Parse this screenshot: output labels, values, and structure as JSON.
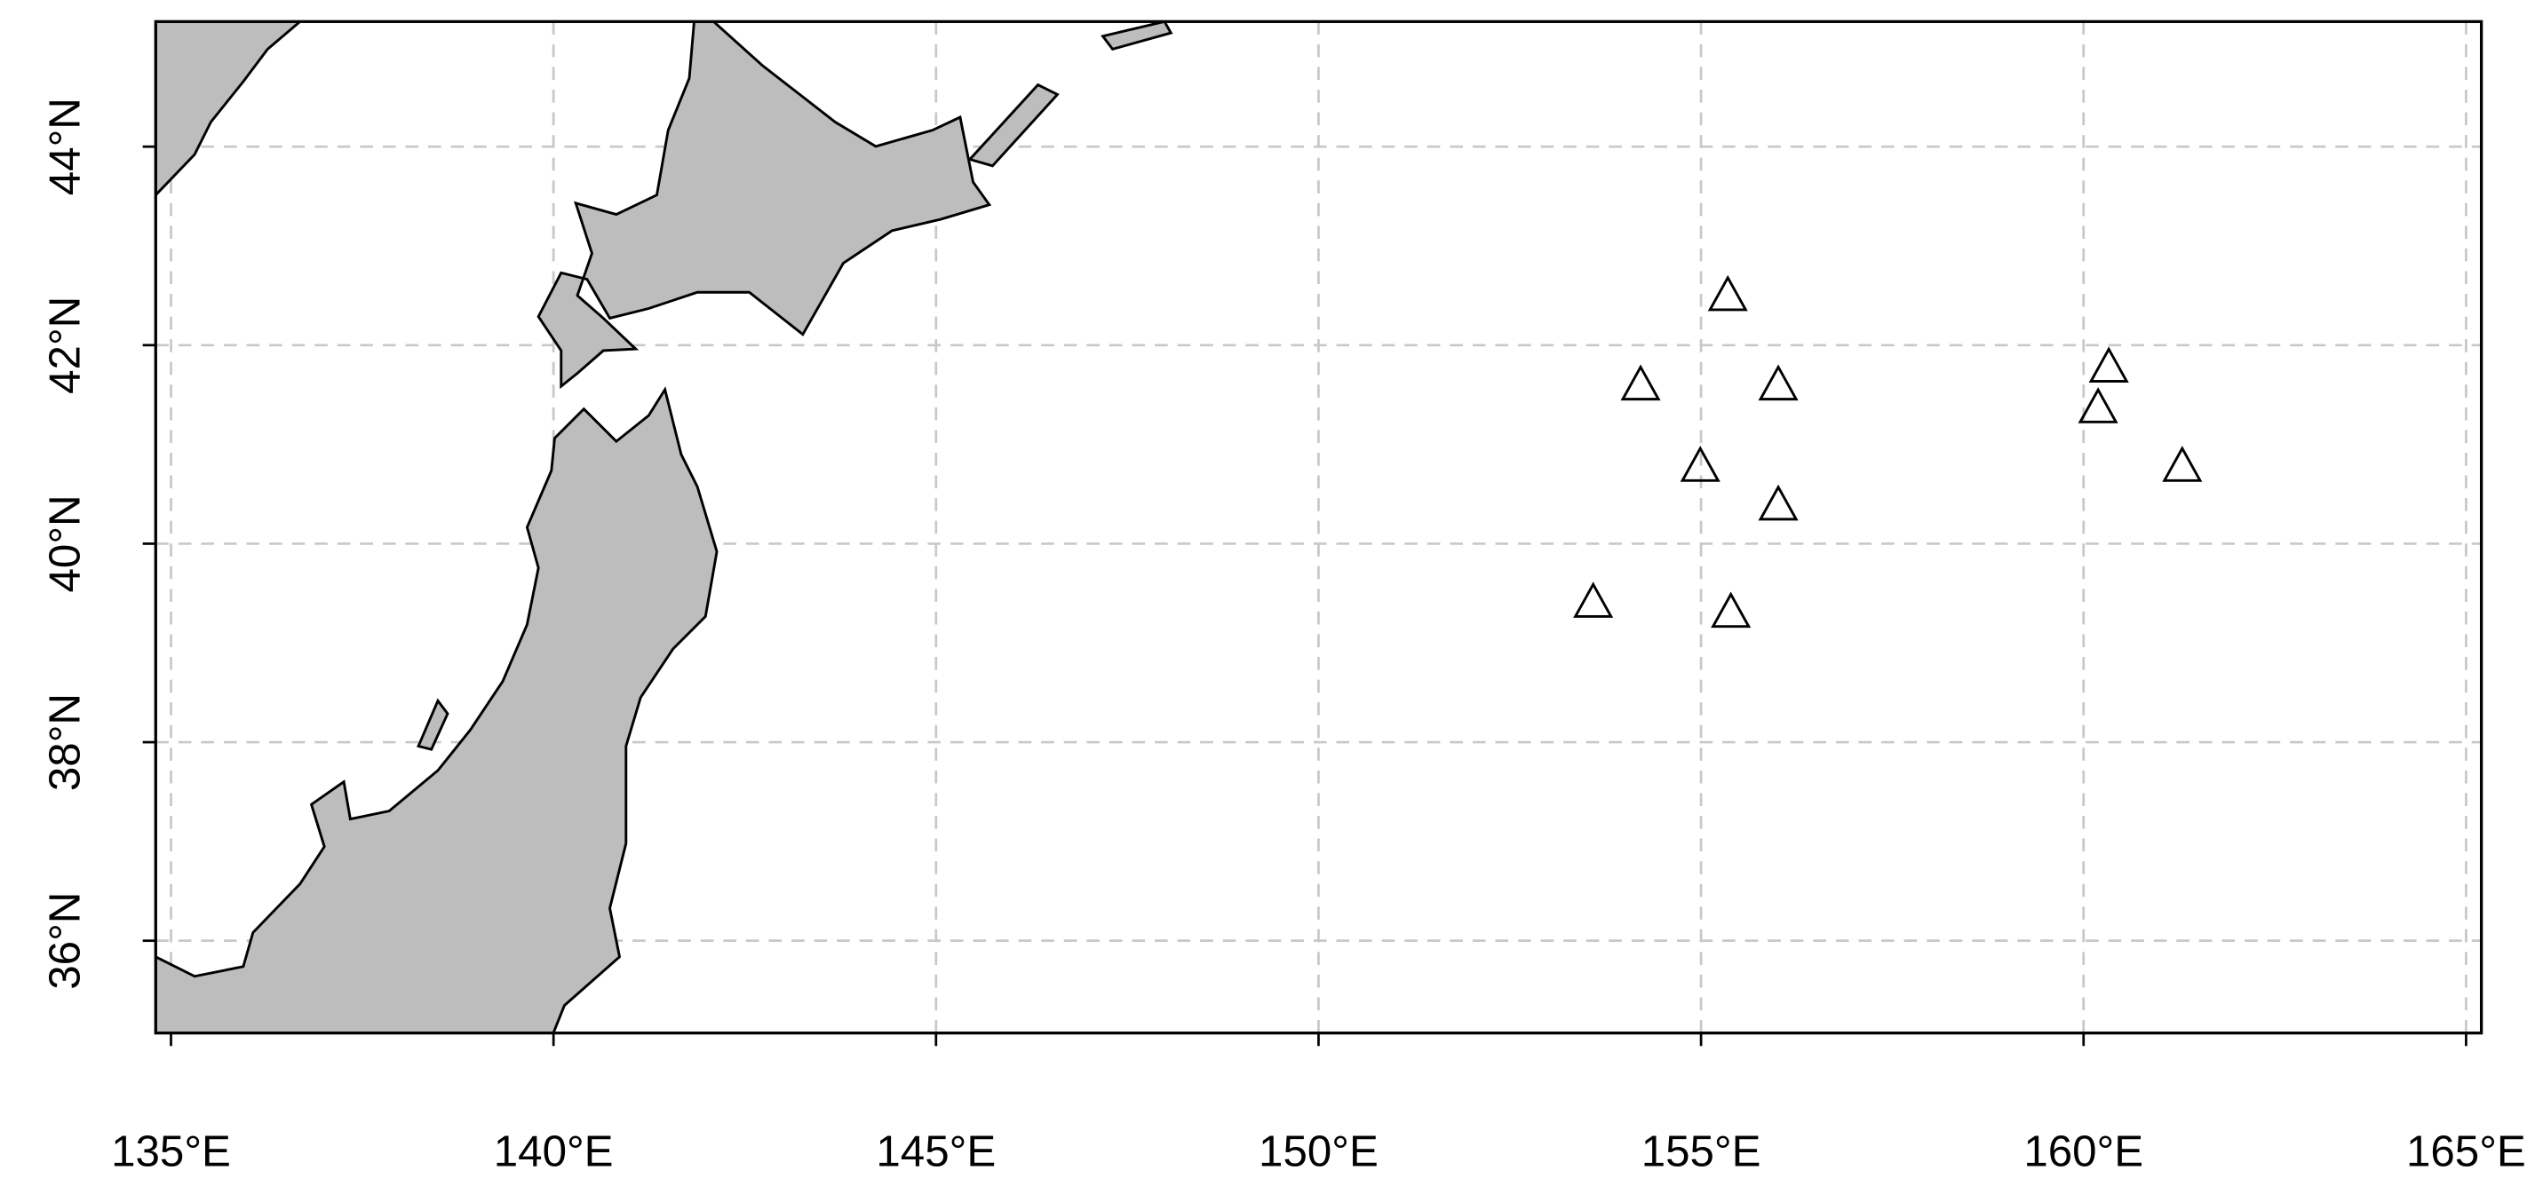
{
  "chart_data": {
    "type": "scatter",
    "x": [
      155.35,
      154.21,
      156.01,
      154.99,
      156.01,
      153.59,
      155.39,
      160.33,
      160.19,
      161.29
    ],
    "y": [
      42.5,
      41.6,
      41.6,
      40.78,
      40.39,
      39.41,
      39.31,
      41.78,
      41.37,
      40.78
    ],
    "marker": "triangle",
    "color": "#000000",
    "xlim": [
      134.8,
      165.2
    ],
    "ylim": [
      35.07,
      45.26
    ],
    "xticks": [
      {
        "value": 135,
        "label": "135°E"
      },
      {
        "value": 140,
        "label": "140°E"
      },
      {
        "value": 145,
        "label": "145°E"
      },
      {
        "value": 150,
        "label": "150°E"
      },
      {
        "value": 155,
        "label": "155°E"
      },
      {
        "value": 160,
        "label": "160°E"
      },
      {
        "value": 165,
        "label": "165°E"
      }
    ],
    "yticks": [
      {
        "value": 36,
        "label": "36°N"
      },
      {
        "value": 38,
        "label": "38°N"
      },
      {
        "value": 40,
        "label": "40°N"
      },
      {
        "value": 42,
        "label": "42°N"
      },
      {
        "value": 44,
        "label": "44°N"
      }
    ],
    "grid": true
  }
}
